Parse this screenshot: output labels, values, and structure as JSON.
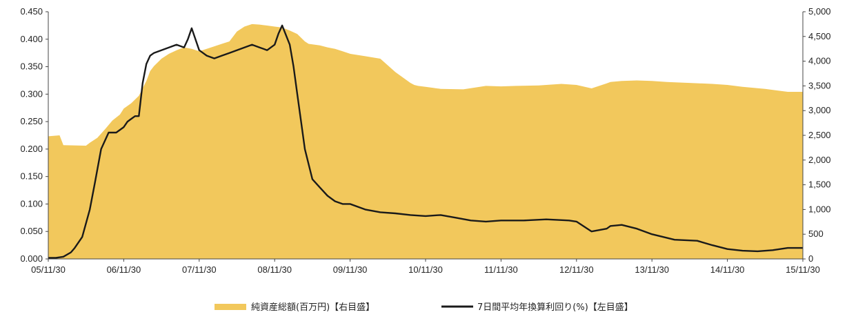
{
  "chart_data": {
    "type": "area",
    "x_ticks": [
      "05/11/30",
      "06/11/30",
      "07/11/30",
      "08/11/30",
      "09/11/30",
      "10/11/30",
      "11/11/30",
      "12/11/30",
      "13/11/30",
      "14/11/30",
      "15/11/30"
    ],
    "y_left_ticks": [
      "0.000",
      "0.050",
      "0.100",
      "0.150",
      "0.200",
      "0.250",
      "0.300",
      "0.350",
      "0.400",
      "0.450"
    ],
    "y_left_range": [
      0,
      0.45
    ],
    "y_right_ticks": [
      "0",
      "500",
      "1,000",
      "1,500",
      "2,000",
      "2,500",
      "3,000",
      "3,500",
      "4,000",
      "4,500",
      "5,000"
    ],
    "y_right_range": [
      0,
      5000
    ],
    "grid": false,
    "legend_position": "bottom-center",
    "colors": {
      "area": "#f2c85c",
      "line": "#1a1a1a"
    },
    "series": [
      {
        "name": "純資産総額(百万円)【右目盛】",
        "axis": "right",
        "kind": "area",
        "x": [
          0,
          0.15,
          0.2,
          0.5,
          0.55,
          0.65,
          0.75,
          0.85,
          0.95,
          1.0,
          1.1,
          1.2,
          1.3,
          1.35,
          1.4,
          1.5,
          1.6,
          1.7,
          1.8,
          1.9,
          2.0,
          2.1,
          2.2,
          2.3,
          2.4,
          2.5,
          2.6,
          2.7,
          2.8,
          2.9,
          3.0,
          3.1,
          3.2,
          3.3,
          3.4,
          3.45,
          3.5,
          3.6,
          3.7,
          3.8,
          3.9,
          4.0,
          4.2,
          4.4,
          4.6,
          4.8,
          4.85,
          4.9,
          5.0,
          5.2,
          5.5,
          5.8,
          6.0,
          6.2,
          6.5,
          6.8,
          7.0,
          7.2,
          7.4,
          7.45,
          7.6,
          7.8,
          8.0,
          8.2,
          8.5,
          8.8,
          9.0,
          9.2,
          9.5,
          9.7,
          9.8,
          10.0
        ],
        "values": [
          2480,
          2500,
          2300,
          2290,
          2350,
          2450,
          2620,
          2800,
          2920,
          3040,
          3150,
          3300,
          3600,
          3800,
          3900,
          4050,
          4150,
          4220,
          4280,
          4250,
          4200,
          4250,
          4300,
          4350,
          4400,
          4600,
          4700,
          4750,
          4740,
          4720,
          4700,
          4680,
          4620,
          4550,
          4400,
          4350,
          4340,
          4320,
          4280,
          4250,
          4200,
          4150,
          4100,
          4050,
          3780,
          3560,
          3520,
          3500,
          3480,
          3440,
          3430,
          3500,
          3490,
          3500,
          3510,
          3540,
          3520,
          3450,
          3550,
          3580,
          3600,
          3610,
          3600,
          3580,
          3560,
          3540,
          3520,
          3480,
          3440,
          3400,
          3380,
          3380
        ]
      },
      {
        "name": "7日間平均年換算利回り(%)【左目盛】",
        "axis": "left",
        "kind": "line",
        "x": [
          0,
          0.1,
          0.2,
          0.3,
          0.35,
          0.45,
          0.55,
          0.62,
          0.7,
          0.8,
          0.9,
          1.0,
          1.05,
          1.1,
          1.15,
          1.2,
          1.25,
          1.3,
          1.35,
          1.4,
          1.5,
          1.6,
          1.7,
          1.8,
          1.85,
          1.9,
          2.0,
          2.05,
          2.1,
          2.2,
          2.3,
          2.4,
          2.5,
          2.6,
          2.7,
          2.8,
          2.9,
          3.0,
          3.05,
          3.1,
          3.2,
          3.25,
          3.3,
          3.35,
          3.4,
          3.5,
          3.6,
          3.7,
          3.8,
          3.9,
          4.0,
          4.2,
          4.4,
          4.6,
          4.8,
          5.0,
          5.2,
          5.4,
          5.6,
          5.8,
          6.0,
          6.3,
          6.6,
          6.9,
          7.0,
          7.2,
          7.4,
          7.45,
          7.6,
          7.8,
          8.0,
          8.3,
          8.6,
          8.8,
          9.0,
          9.2,
          9.4,
          9.6,
          9.8,
          10.0
        ],
        "values": [
          0.002,
          0.002,
          0.004,
          0.012,
          0.02,
          0.04,
          0.09,
          0.14,
          0.2,
          0.23,
          0.23,
          0.24,
          0.25,
          0.255,
          0.26,
          0.26,
          0.32,
          0.355,
          0.37,
          0.375,
          0.38,
          0.385,
          0.39,
          0.385,
          0.4,
          0.42,
          0.38,
          0.375,
          0.37,
          0.365,
          0.37,
          0.375,
          0.38,
          0.385,
          0.39,
          0.385,
          0.38,
          0.39,
          0.41,
          0.425,
          0.39,
          0.35,
          0.3,
          0.25,
          0.2,
          0.145,
          0.13,
          0.115,
          0.105,
          0.1,
          0.1,
          0.09,
          0.085,
          0.083,
          0.08,
          0.078,
          0.08,
          0.075,
          0.07,
          0.068,
          0.07,
          0.07,
          0.072,
          0.07,
          0.068,
          0.05,
          0.055,
          0.06,
          0.062,
          0.055,
          0.045,
          0.035,
          0.033,
          0.025,
          0.018,
          0.015,
          0.014,
          0.016,
          0.02,
          0.02
        ]
      }
    ]
  }
}
